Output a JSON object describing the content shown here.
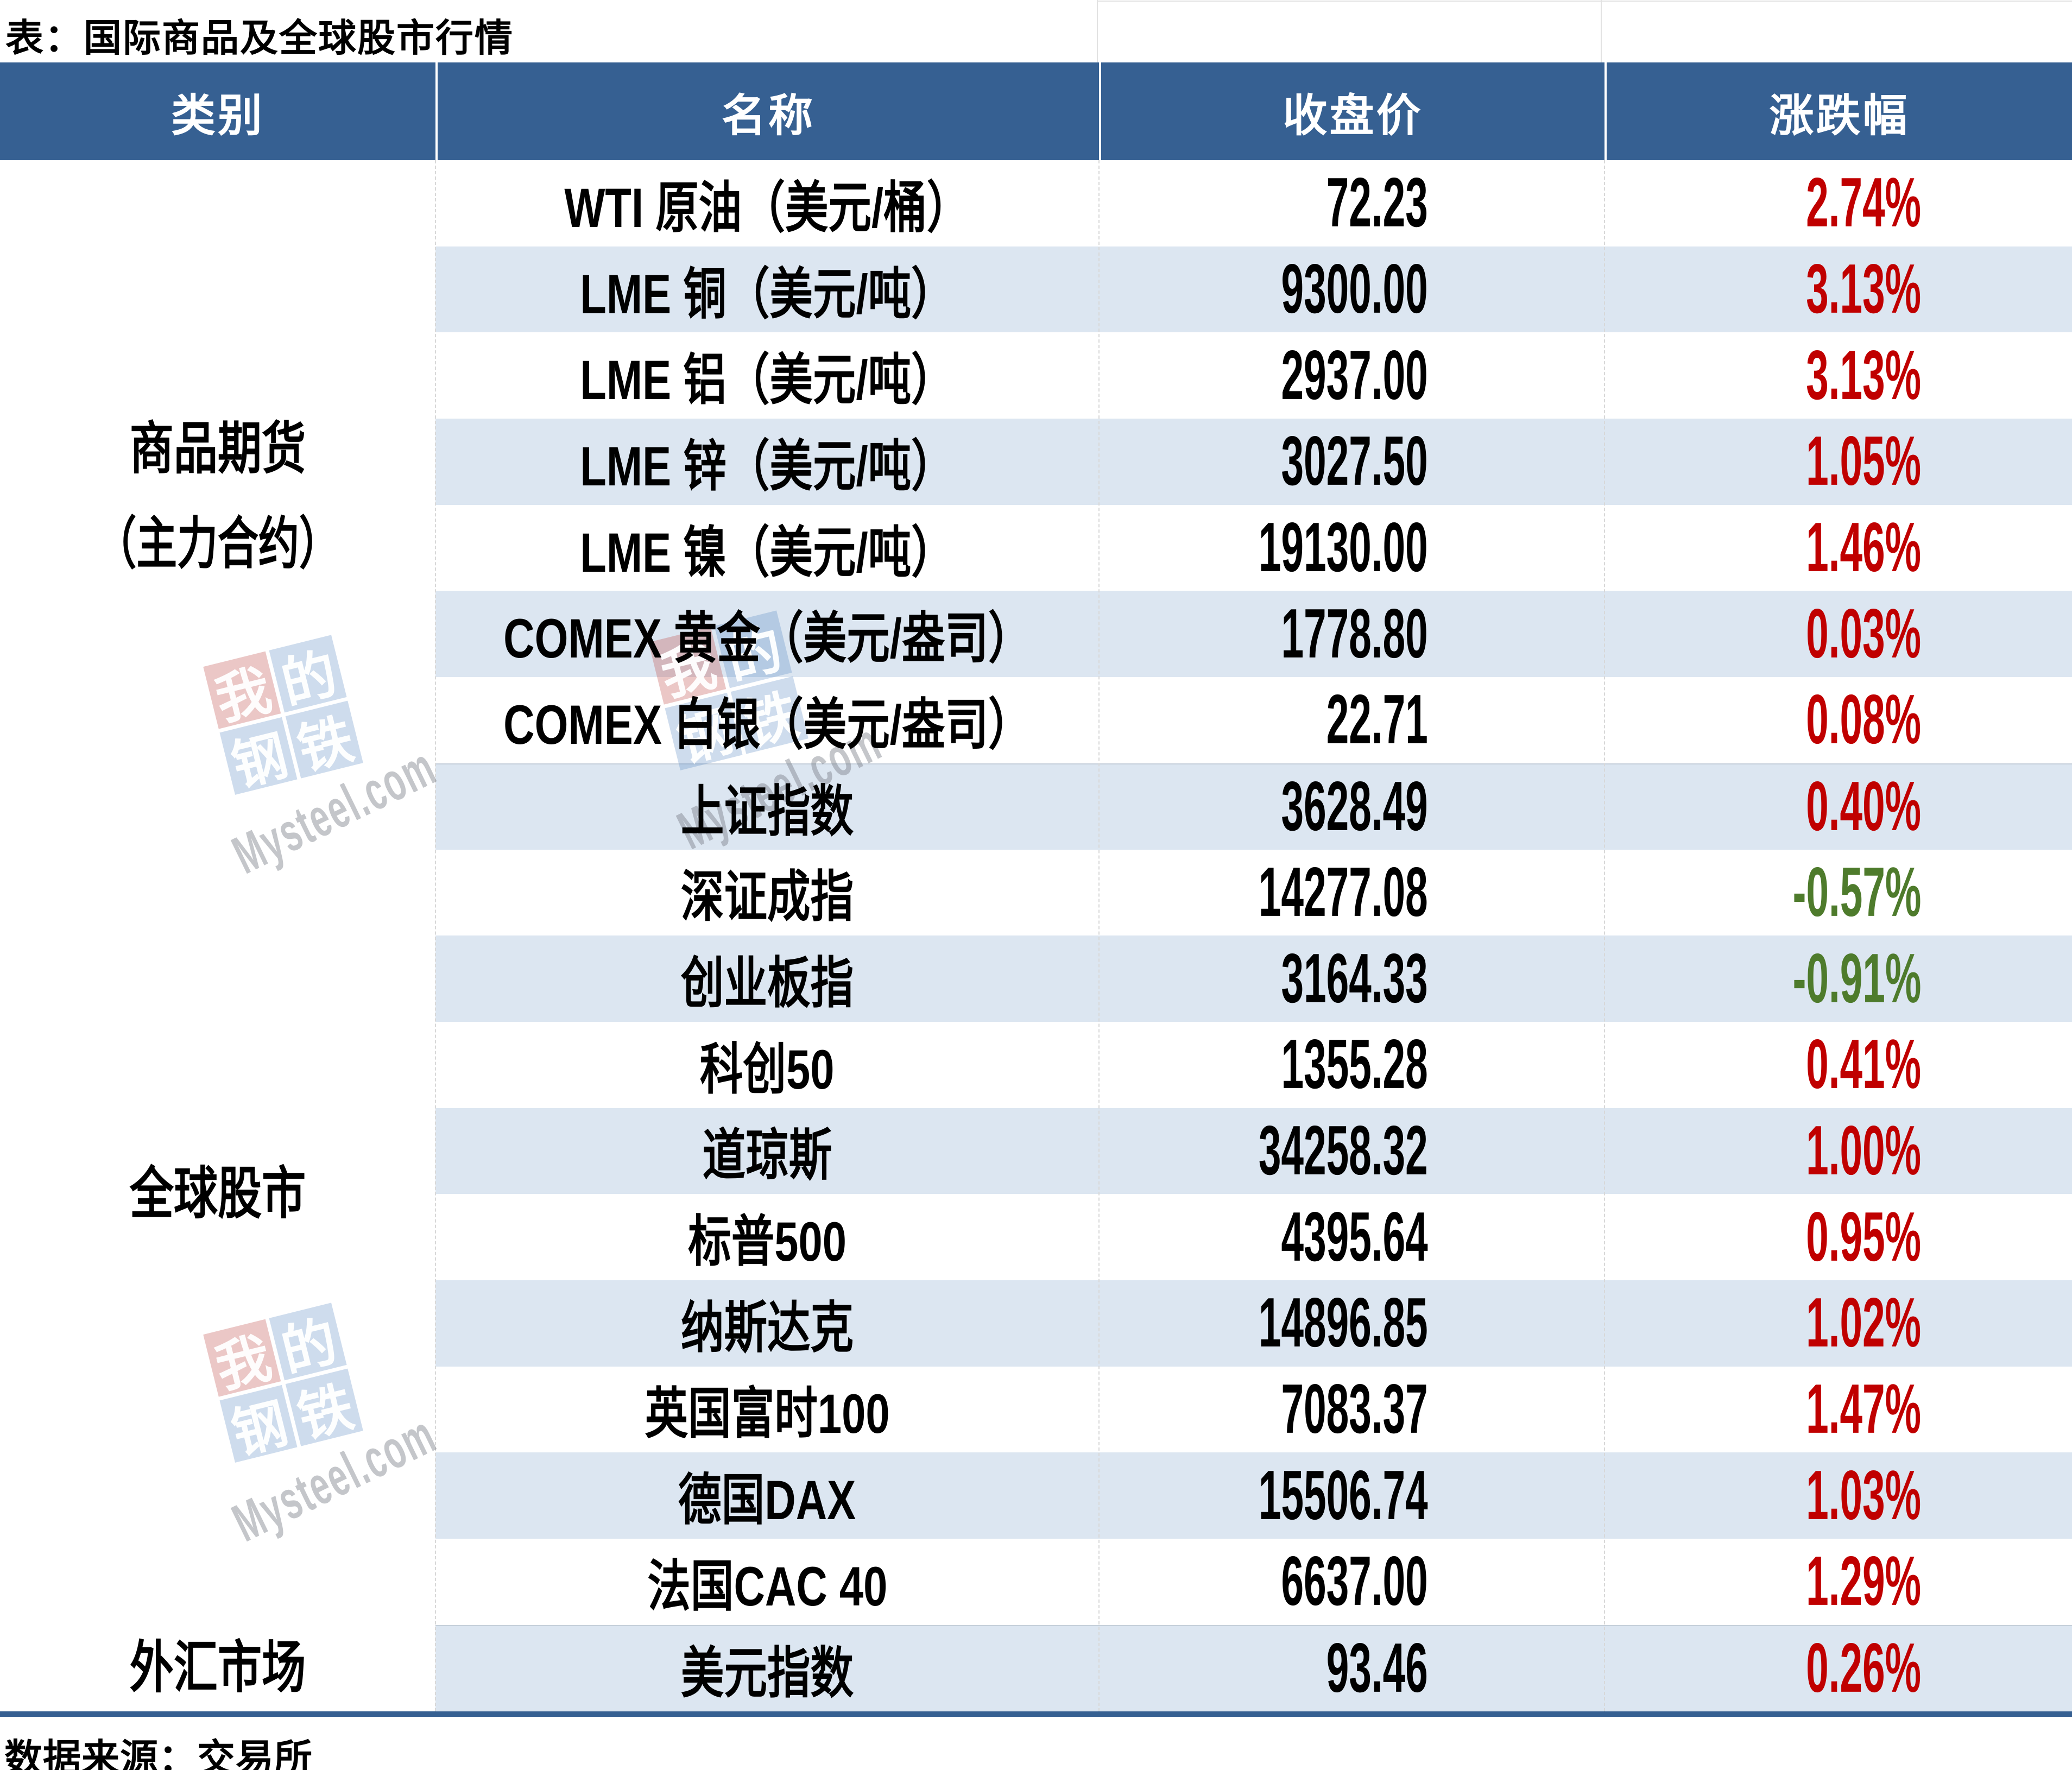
{
  "title": "表：国际商品及全球股市行情",
  "source_note": "数据来源：交易所",
  "colors": {
    "header_bg": "#366092",
    "stripe": "#dce6f1",
    "up_red": "#c00000",
    "down_green": "#4e7b2c",
    "bottom_bar": "#366092"
  },
  "watermark": {
    "tiles": [
      "我",
      "的",
      "钢",
      "铁"
    ],
    "text": "Mysteel.com"
  },
  "table": {
    "columns": [
      "类别",
      "名称",
      "收盘价",
      "涨跌幅"
    ],
    "groups": [
      {
        "label": "商品期货",
        "label_line2": "（主力合约）",
        "rows": "WTI原油—COMEX白银"
      },
      {
        "label": "全球股市",
        "rows": "上证指数—法国CAC 40"
      },
      {
        "label": "外汇市场",
        "rows": "美元指数"
      }
    ],
    "rows": [
      {
        "name": "WTI 原油（美元/桶）",
        "close": "72.23",
        "change": "2.74%",
        "change_color": "#c00000"
      },
      {
        "name": "LME 铜（美元/吨）",
        "close": "9300.00",
        "change": "3.13%",
        "change_color": "#c00000"
      },
      {
        "name": "LME 铝（美元/吨）",
        "close": "2937.00",
        "change": "3.13%",
        "change_color": "#c00000"
      },
      {
        "name": "LME 锌（美元/吨）",
        "close": "3027.50",
        "change": "1.05%",
        "change_color": "#c00000"
      },
      {
        "name": "LME 镍（美元/吨）",
        "close": "19130.00",
        "change": "1.46%",
        "change_color": "#c00000"
      },
      {
        "name": "COMEX 黄金（美元/盎司）",
        "close": "1778.80",
        "change": "0.03%",
        "change_color": "#c00000"
      },
      {
        "name": "COMEX 白银（美元/盎司）",
        "close": "22.71",
        "change": "0.08%",
        "change_color": "#c00000"
      },
      {
        "name": "上证指数",
        "close": "3628.49",
        "change": "0.40%",
        "change_color": "#c00000"
      },
      {
        "name": "深证成指",
        "close": "14277.08",
        "change": "-0.57%",
        "change_color": "#4e7b2c"
      },
      {
        "name": "创业板指",
        "close": "3164.33",
        "change": "-0.91%",
        "change_color": "#4e7b2c"
      },
      {
        "name": "科创50",
        "close": "1355.28",
        "change": "0.41%",
        "change_color": "#c00000"
      },
      {
        "name": "道琼斯",
        "close": "34258.32",
        "change": "1.00%",
        "change_color": "#c00000"
      },
      {
        "name": "标普500",
        "close": "4395.64",
        "change": "0.95%",
        "change_color": "#c00000"
      },
      {
        "name": "纳斯达克",
        "close": "14896.85",
        "change": "1.02%",
        "change_color": "#c00000"
      },
      {
        "name": "英国富时100",
        "close": "7083.37",
        "change": "1.47%",
        "change_color": "#c00000"
      },
      {
        "name": "德国DAX",
        "close": "15506.74",
        "change": "1.03%",
        "change_color": "#c00000"
      },
      {
        "name": "法国CAC 40",
        "close": "6637.00",
        "change": "1.29%",
        "change_color": "#c00000"
      },
      {
        "name": "美元指数",
        "close": "93.46",
        "change": "0.26%",
        "change_color": "#c00000"
      }
    ]
  }
}
